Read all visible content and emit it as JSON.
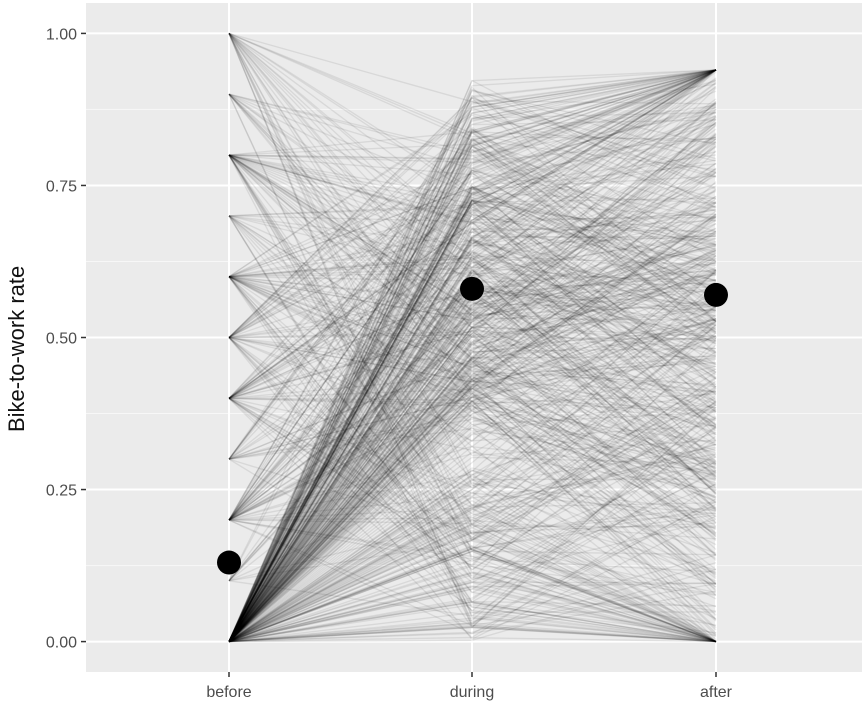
{
  "chart_data": {
    "type": "line",
    "title": "",
    "xlabel": "",
    "ylabel": "Bike-to-work rate",
    "categories": [
      "before",
      "during",
      "after"
    ],
    "y_ticks": [
      "0.00",
      "0.25",
      "0.50",
      "0.75",
      "1.00"
    ],
    "y_tick_values": [
      0,
      0.25,
      0.5,
      0.75,
      1.0
    ],
    "ylim": [
      -0.05,
      1.05
    ],
    "grid": true,
    "legend": "none",
    "background": "#ebebeb",
    "gridline_color": "#ffffff",
    "line_color": "#000000",
    "point_color": "#000000",
    "means": [
      {
        "x": "before",
        "y": 0.13
      },
      {
        "x": "during",
        "y": 0.58
      },
      {
        "x": "after",
        "y": 0.57
      }
    ],
    "individual_lines": {
      "description_free": true,
      "n_lines": 700,
      "before_levels": [
        0,
        0.1,
        0.2,
        0.3,
        0.4,
        0.5,
        0.6,
        0.7,
        0.8,
        0.9,
        1.0
      ],
      "before_level_weights": [
        0.55,
        0.02,
        0.07,
        0.03,
        0.06,
        0.06,
        0.06,
        0.03,
        0.06,
        0.02,
        0.04
      ],
      "during_range": [
        0,
        0.93
      ],
      "after_range": [
        0,
        0.94
      ]
    }
  }
}
